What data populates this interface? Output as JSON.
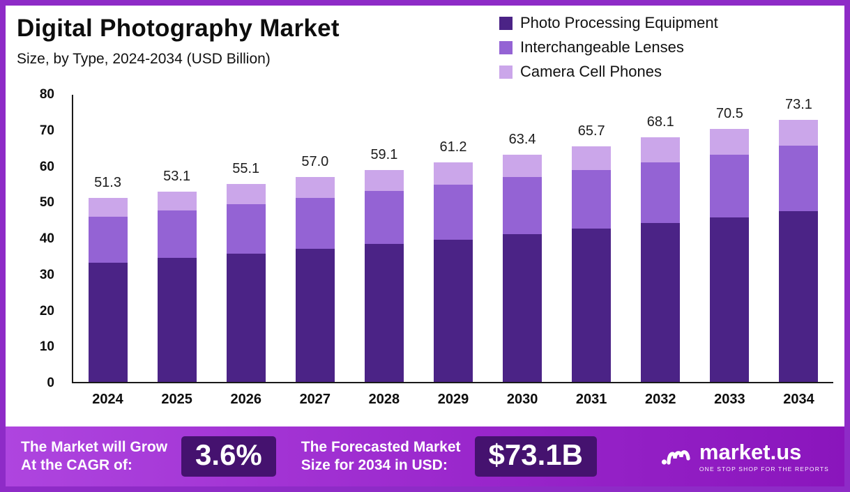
{
  "page": {
    "title": "Digital Photography Market",
    "subtitle": "Size, by Type, 2024-2034 (USD Billion)"
  },
  "legend": [
    {
      "label": "Photo Processing Equipment",
      "color": "#4B2386"
    },
    {
      "label": "Interchangeable Lenses",
      "color": "#9463D4"
    },
    {
      "label": "Camera Cell Phones",
      "color": "#CBA6EA"
    }
  ],
  "chart_data": {
    "type": "bar",
    "stacked": true,
    "title": "Digital Photography Market",
    "subtitle": "Size, by Type, 2024-2034 (USD Billion)",
    "xlabel": "",
    "ylabel": "",
    "ylim": [
      0,
      80
    ],
    "yticks": [
      0,
      10,
      20,
      30,
      40,
      50,
      60,
      70,
      80
    ],
    "grid": false,
    "legend_position": "top-right",
    "categories": [
      "2024",
      "2025",
      "2026",
      "2027",
      "2028",
      "2029",
      "2030",
      "2031",
      "2032",
      "2033",
      "2034"
    ],
    "series": [
      {
        "name": "Photo Processing Equipment",
        "color": "#4B2386",
        "values": [
          33.3,
          34.5,
          35.8,
          37.0,
          38.4,
          39.7,
          41.2,
          42.7,
          44.2,
          45.8,
          47.5
        ]
      },
      {
        "name": "Interchangeable Lenses",
        "color": "#9463D4",
        "values": [
          12.8,
          13.3,
          13.8,
          14.3,
          14.8,
          15.3,
          15.9,
          16.4,
          17.0,
          17.6,
          18.3
        ]
      },
      {
        "name": "Camera Cell Phones",
        "color": "#CBA6EA",
        "values": [
          5.2,
          5.3,
          5.5,
          5.7,
          5.9,
          6.2,
          6.3,
          6.6,
          6.9,
          7.1,
          7.3
        ]
      }
    ],
    "totals": [
      "51.3",
      "53.1",
      "55.1",
      "57.0",
      "59.1",
      "61.2",
      "63.4",
      "65.7",
      "68.1",
      "70.5",
      "73.1"
    ]
  },
  "banner": {
    "cagr_label_line1": "The Market will Grow",
    "cagr_label_line2": "At the CAGR of:",
    "cagr_value": "3.6%",
    "forecast_label_line1": "The Forecasted Market",
    "forecast_label_line2": "Size for 2034 in USD:",
    "forecast_value": "$73.1B",
    "brand": "market.us",
    "brand_tagline": "ONE STOP SHOP FOR THE REPORTS"
  },
  "colors": {
    "border": "#8E2BC7",
    "banner_gradient_start": "#AE45DF",
    "banner_gradient_end": "#8A15BC",
    "value_box": "#45126F",
    "axis": "#1a1a1a"
  }
}
